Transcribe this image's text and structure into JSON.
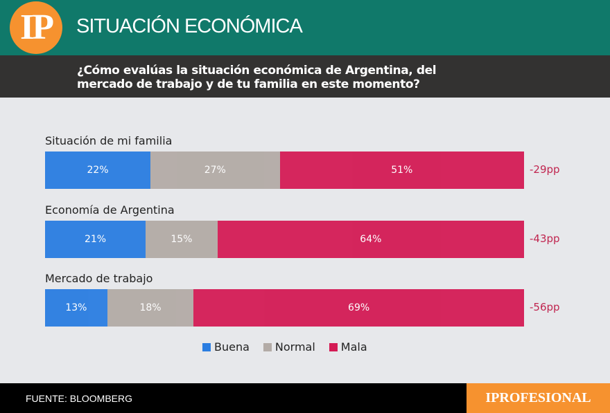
{
  "header": {
    "logo": "IP",
    "title": "SITUACIÓN ECONÓMICA"
  },
  "question": "¿Cómo evalúas la situación económica de Argentina, del mercado de trabajo y de tu familia en este momento?",
  "chart_data": {
    "type": "bar",
    "stacked": true,
    "orientation": "horizontal",
    "categories": [
      "Situación de mi familia",
      "Economía de Argentina",
      "Mercado de trabajo"
    ],
    "series": [
      {
        "name": "Buena",
        "color": "#2a7de1",
        "values": [
          22,
          21,
          13
        ],
        "labels": [
          "22%",
          "21%",
          "13%"
        ]
      },
      {
        "name": "Normal",
        "color": "#b3aba6",
        "values": [
          27,
          15,
          18
        ],
        "labels": [
          "27%",
          "15%",
          "18%"
        ]
      },
      {
        "name": "Mala",
        "color": "#d41b55",
        "values": [
          51,
          64,
          69
        ],
        "labels": [
          "51%",
          "64%",
          "69%"
        ]
      }
    ],
    "net": [
      "-29pp",
      "-43pp",
      "-56pp"
    ],
    "legend_position": "bottom"
  },
  "footer": {
    "source": "FUENTE: BLOOMBERG",
    "brand": "IPROFESIONAL"
  }
}
